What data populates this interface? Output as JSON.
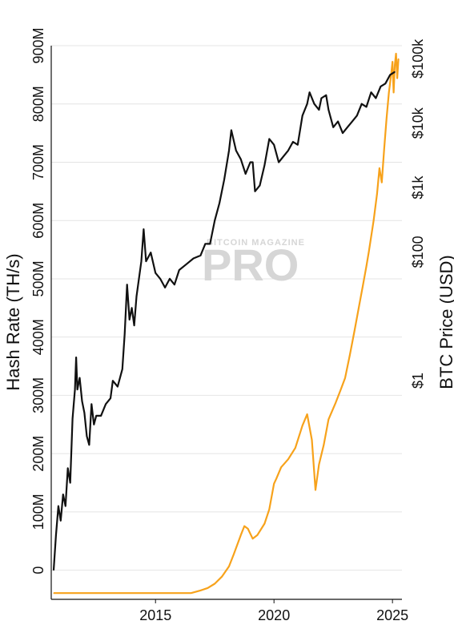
{
  "watermark": {
    "top": "BITCOIN MAGAZINE",
    "main": "PRO"
  },
  "chart_data": {
    "type": "line",
    "title": "",
    "xlabel": "",
    "orientation": "rotated-90-clockwise",
    "x_axis": {
      "ticks": [
        "2015",
        "2020",
        "2025"
      ],
      "range": [
        2010.6,
        2025.4
      ]
    },
    "y_left": {
      "label": "Hash Rate (TH/s)",
      "ticks": [
        "0",
        "100M",
        "200M",
        "300M",
        "400M",
        "500M",
        "600M",
        "700M",
        "800M",
        "900M"
      ],
      "range": [
        -50,
        900
      ],
      "unit": "M TH/s"
    },
    "y_right": {
      "label": "BTC Price (USD)",
      "scale": "log",
      "ticks": [
        "$1",
        "$100",
        "$1k",
        "$10k",
        "$100k"
      ],
      "tick_values": [
        1,
        100,
        1000,
        10000,
        100000
      ],
      "range": [
        0.0004,
        160000
      ]
    },
    "grid": true,
    "colors": {
      "hash_rate": "#111111",
      "price": "#f7a21b",
      "grid": "#e4e4e4"
    },
    "series": [
      {
        "name": "Hash Rate (TH/s)",
        "axis": "left",
        "points": [
          [
            2010.7,
            0
          ],
          [
            2010.8,
            60
          ],
          [
            2010.9,
            110
          ],
          [
            2011.0,
            85
          ],
          [
            2011.1,
            130
          ],
          [
            2011.2,
            110
          ],
          [
            2011.3,
            175
          ],
          [
            2011.4,
            150
          ],
          [
            2011.5,
            260
          ],
          [
            2011.6,
            310
          ],
          [
            2011.65,
            365
          ],
          [
            2011.7,
            310
          ],
          [
            2011.8,
            330
          ],
          [
            2011.9,
            290
          ],
          [
            2012.0,
            270
          ],
          [
            2012.1,
            230
          ],
          [
            2012.2,
            215
          ],
          [
            2012.3,
            285
          ],
          [
            2012.4,
            250
          ],
          [
            2012.5,
            265
          ],
          [
            2012.7,
            265
          ],
          [
            2012.9,
            285
          ],
          [
            2013.1,
            295
          ],
          [
            2013.2,
            325
          ],
          [
            2013.4,
            315
          ],
          [
            2013.6,
            345
          ],
          [
            2013.7,
            405
          ],
          [
            2013.8,
            490
          ],
          [
            2013.9,
            430
          ],
          [
            2014.0,
            450
          ],
          [
            2014.1,
            420
          ],
          [
            2014.2,
            470
          ],
          [
            2014.4,
            530
          ],
          [
            2014.5,
            585
          ],
          [
            2014.6,
            530
          ],
          [
            2014.8,
            545
          ],
          [
            2015.0,
            510
          ],
          [
            2015.2,
            500
          ],
          [
            2015.4,
            485
          ],
          [
            2015.6,
            500
          ],
          [
            2015.8,
            490
          ],
          [
            2016.0,
            515
          ],
          [
            2016.3,
            525
          ],
          [
            2016.6,
            535
          ],
          [
            2016.9,
            540
          ],
          [
            2017.1,
            560
          ],
          [
            2017.3,
            560
          ],
          [
            2017.5,
            600
          ],
          [
            2017.7,
            630
          ],
          [
            2017.9,
            670
          ],
          [
            2018.1,
            720
          ],
          [
            2018.2,
            755
          ],
          [
            2018.4,
            720
          ],
          [
            2018.6,
            705
          ],
          [
            2018.8,
            680
          ],
          [
            2019.0,
            700
          ],
          [
            2019.1,
            700
          ],
          [
            2019.2,
            650
          ],
          [
            2019.4,
            660
          ],
          [
            2019.6,
            695
          ],
          [
            2019.8,
            740
          ],
          [
            2020.0,
            730
          ],
          [
            2020.2,
            700
          ],
          [
            2020.4,
            710
          ],
          [
            2020.6,
            720
          ],
          [
            2020.8,
            735
          ],
          [
            2021.0,
            730
          ],
          [
            2021.2,
            780
          ],
          [
            2021.4,
            800
          ],
          [
            2021.5,
            820
          ],
          [
            2021.7,
            800
          ],
          [
            2021.9,
            790
          ],
          [
            2022.0,
            810
          ],
          [
            2022.2,
            815
          ],
          [
            2022.3,
            790
          ],
          [
            2022.5,
            760
          ],
          [
            2022.7,
            770
          ],
          [
            2022.9,
            750
          ],
          [
            2023.1,
            760
          ],
          [
            2023.3,
            770
          ],
          [
            2023.5,
            780
          ],
          [
            2023.7,
            800
          ],
          [
            2023.9,
            795
          ],
          [
            2024.1,
            820
          ],
          [
            2024.3,
            810
          ],
          [
            2024.5,
            830
          ],
          [
            2024.7,
            835
          ],
          [
            2024.9,
            850
          ],
          [
            2025.1,
            855
          ]
        ]
      },
      {
        "name": "BTC Price (USD)",
        "axis": "right",
        "points": [
          [
            2010.7,
            0.0005
          ],
          [
            2011.5,
            0.0005
          ],
          [
            2012.5,
            0.0005
          ],
          [
            2013.5,
            0.0005
          ],
          [
            2014.5,
            0.0005
          ],
          [
            2015.5,
            0.0005
          ],
          [
            2016.5,
            0.0005
          ],
          [
            2016.9,
            0.00055
          ],
          [
            2017.2,
            0.0006
          ],
          [
            2017.5,
            0.0007
          ],
          [
            2017.8,
            0.0009
          ],
          [
            2018.1,
            0.0013
          ],
          [
            2018.3,
            0.002
          ],
          [
            2018.6,
            0.004
          ],
          [
            2018.75,
            0.0055
          ],
          [
            2018.9,
            0.005
          ],
          [
            2019.1,
            0.0035
          ],
          [
            2019.3,
            0.004
          ],
          [
            2019.6,
            0.006
          ],
          [
            2019.8,
            0.01
          ],
          [
            2020.0,
            0.025
          ],
          [
            2020.1,
            0.03
          ],
          [
            2020.3,
            0.045
          ],
          [
            2020.6,
            0.06
          ],
          [
            2020.9,
            0.09
          ],
          [
            2021.2,
            0.2
          ],
          [
            2021.4,
            0.3
          ],
          [
            2021.6,
            0.12
          ],
          [
            2021.75,
            0.02
          ],
          [
            2021.9,
            0.05
          ],
          [
            2022.1,
            0.1
          ],
          [
            2022.3,
            0.25
          ],
          [
            2022.6,
            0.45
          ],
          [
            2022.8,
            0.7
          ],
          [
            2023.0,
            1.1
          ],
          [
            2023.2,
            2.5
          ],
          [
            2023.4,
            6
          ],
          [
            2023.6,
            15
          ],
          [
            2023.75,
            30
          ],
          [
            2023.9,
            60
          ],
          [
            2024.0,
            100
          ],
          [
            2024.2,
            300
          ],
          [
            2024.35,
            800
          ],
          [
            2024.45,
            2000
          ],
          [
            2024.55,
            1200
          ],
          [
            2024.65,
            4000
          ],
          [
            2024.75,
            12000
          ],
          [
            2024.85,
            30000
          ],
          [
            2024.95,
            60000
          ],
          [
            2025.0,
            90000
          ],
          [
            2025.05,
            30000
          ],
          [
            2025.1,
            80000
          ],
          [
            2025.15,
            120000
          ],
          [
            2025.2,
            50000
          ],
          [
            2025.25,
            100000
          ]
        ]
      }
    ]
  }
}
